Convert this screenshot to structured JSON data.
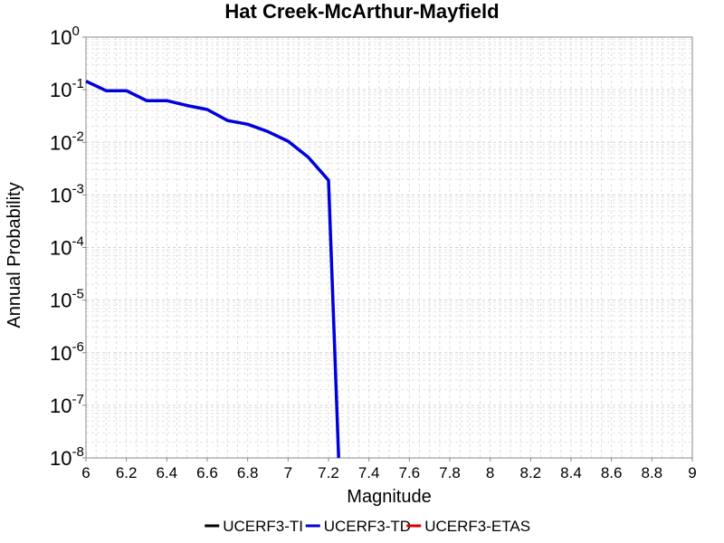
{
  "chart_data": {
    "type": "line",
    "title": "Hat Creek-McArthur-Mayfield",
    "xlabel": "Magnitude",
    "ylabel": "Annual Probability",
    "xlim": [
      6,
      9
    ],
    "ylim": [
      1e-08,
      1
    ],
    "y_scale": "log",
    "grid": true,
    "legend_position": "bottom",
    "x_ticks": [
      "6",
      "6.2",
      "6.4",
      "6.6",
      "6.8",
      "7",
      "7.2",
      "7.4",
      "7.6",
      "7.8",
      "8",
      "8.2",
      "8.4",
      "8.6",
      "8.8",
      "9"
    ],
    "y_ticks": [
      {
        "base": "10",
        "exp": "0"
      },
      {
        "base": "10",
        "exp": "-1"
      },
      {
        "base": "10",
        "exp": "-2"
      },
      {
        "base": "10",
        "exp": "-3"
      },
      {
        "base": "10",
        "exp": "-4"
      },
      {
        "base": "10",
        "exp": "-5"
      },
      {
        "base": "10",
        "exp": "-6"
      },
      {
        "base": "10",
        "exp": "-7"
      },
      {
        "base": "10",
        "exp": "-8"
      }
    ],
    "series": [
      {
        "name": "UCERF3-TI",
        "color": "#000000",
        "x": [],
        "y": []
      },
      {
        "name": "UCERF3-TD",
        "color": "#0000dd",
        "x": [
          6.0,
          6.1,
          6.2,
          6.3,
          6.4,
          6.5,
          6.6,
          6.7,
          6.8,
          6.9,
          7.0,
          7.1,
          7.2,
          7.25
        ],
        "y": [
          0.145,
          0.096,
          0.096,
          0.062,
          0.062,
          0.05,
          0.042,
          0.026,
          0.022,
          0.016,
          0.0105,
          0.0052,
          0.0019,
          1e-08
        ]
      },
      {
        "name": "UCERF3-ETAS",
        "color": "#dd0000",
        "x": [],
        "y": []
      }
    ]
  }
}
